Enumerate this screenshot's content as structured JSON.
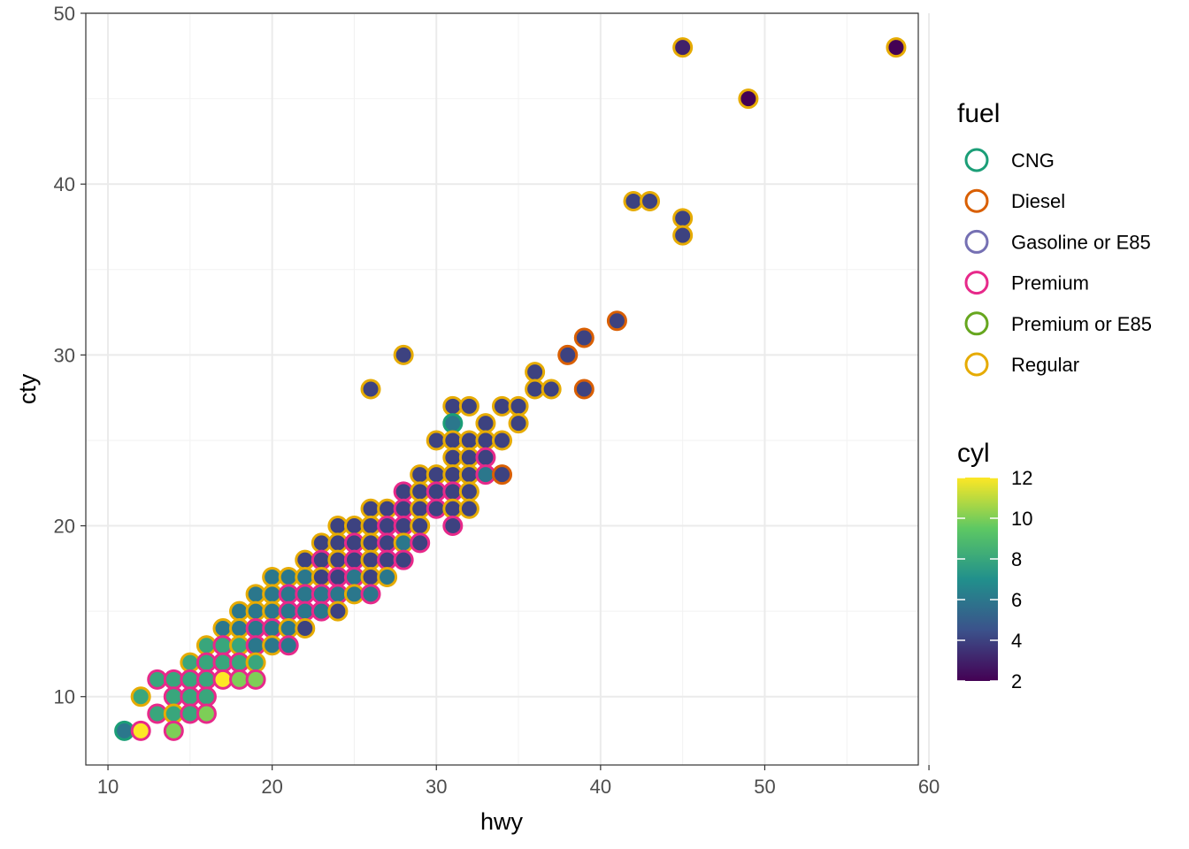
{
  "chart_data": {
    "type": "scatter",
    "title": "",
    "xlabel": "hwy",
    "ylabel": "cty",
    "xlim": [
      8.65,
      59.35
    ],
    "ylim": [
      6.0,
      50.0
    ],
    "x_ticks": [
      10,
      20,
      30,
      40,
      50,
      60
    ],
    "y_ticks": [
      10,
      20,
      30,
      40,
      50
    ],
    "grid": true,
    "fill_encoding": {
      "title": "cyl",
      "type": "continuous",
      "range": [
        2,
        12
      ],
      "ticks": [
        2,
        4,
        6,
        8,
        10,
        12
      ],
      "palette": [
        "#440154",
        "#3B528B",
        "#21908C",
        "#5DC863",
        "#FDE725"
      ]
    },
    "stroke_encoding": {
      "title": "fuel",
      "categories": [
        "CNG",
        "Diesel",
        "Gasoline or E85",
        "Premium",
        "Premium or E85",
        "Regular"
      ],
      "colors": [
        "#1B9E77",
        "#D95F02",
        "#7570B3",
        "#E7298A",
        "#66A61E",
        "#E6AB02"
      ]
    },
    "points": [
      {
        "hwy": 58,
        "cty": 48,
        "cyl": 2,
        "fuel": "Regular"
      },
      {
        "hwy": 45,
        "cty": 48,
        "cyl": 3,
        "fuel": "Regular"
      },
      {
        "hwy": 49,
        "cty": 45,
        "cyl": 2,
        "fuel": "Regular"
      },
      {
        "hwy": 42,
        "cty": 39,
        "cyl": 4,
        "fuel": "Regular"
      },
      {
        "hwy": 43,
        "cty": 39,
        "cyl": 4,
        "fuel": "Regular"
      },
      {
        "hwy": 45,
        "cty": 38,
        "cyl": 4,
        "fuel": "Regular"
      },
      {
        "hwy": 45,
        "cty": 37,
        "cyl": 4,
        "fuel": "Regular"
      },
      {
        "hwy": 41,
        "cty": 32,
        "cyl": 4,
        "fuel": "Diesel"
      },
      {
        "hwy": 39,
        "cty": 31,
        "cyl": 4,
        "fuel": "Diesel"
      },
      {
        "hwy": 38,
        "cty": 30,
        "cyl": 4,
        "fuel": "Diesel"
      },
      {
        "hwy": 28,
        "cty": 30,
        "cyl": 4,
        "fuel": "Regular"
      },
      {
        "hwy": 36,
        "cty": 29,
        "cyl": 4,
        "fuel": "Regular"
      },
      {
        "hwy": 26,
        "cty": 28,
        "cyl": 4,
        "fuel": "Regular"
      },
      {
        "hwy": 36,
        "cty": 28,
        "cyl": 4,
        "fuel": "Regular"
      },
      {
        "hwy": 37,
        "cty": 28,
        "cyl": 4,
        "fuel": "Regular"
      },
      {
        "hwy": 39,
        "cty": 28,
        "cyl": 4,
        "fuel": "Diesel"
      },
      {
        "hwy": 31,
        "cty": 27,
        "cyl": 4,
        "fuel": "Regular"
      },
      {
        "hwy": 32,
        "cty": 27,
        "cyl": 4,
        "fuel": "Regular"
      },
      {
        "hwy": 34,
        "cty": 27,
        "cyl": 4,
        "fuel": "Regular"
      },
      {
        "hwy": 35,
        "cty": 27,
        "cyl": 4,
        "fuel": "Regular"
      },
      {
        "hwy": 31,
        "cty": 26,
        "cyl": 6,
        "fuel": "CNG"
      },
      {
        "hwy": 33,
        "cty": 26,
        "cyl": 4,
        "fuel": "Regular"
      },
      {
        "hwy": 35,
        "cty": 26,
        "cyl": 4,
        "fuel": "Regular"
      },
      {
        "hwy": 30,
        "cty": 25,
        "cyl": 4,
        "fuel": "Regular"
      },
      {
        "hwy": 31,
        "cty": 25,
        "cyl": 4,
        "fuel": "Regular"
      },
      {
        "hwy": 32,
        "cty": 25,
        "cyl": 4,
        "fuel": "Regular"
      },
      {
        "hwy": 33,
        "cty": 25,
        "cyl": 4,
        "fuel": "Regular"
      },
      {
        "hwy": 34,
        "cty": 25,
        "cyl": 4,
        "fuel": "Regular"
      },
      {
        "hwy": 31,
        "cty": 24,
        "cyl": 4,
        "fuel": "Regular"
      },
      {
        "hwy": 32,
        "cty": 24,
        "cyl": 4,
        "fuel": "Regular"
      },
      {
        "hwy": 33,
        "cty": 24,
        "cyl": 4,
        "fuel": "Premium"
      },
      {
        "hwy": 29,
        "cty": 23,
        "cyl": 4,
        "fuel": "Regular"
      },
      {
        "hwy": 30,
        "cty": 23,
        "cyl": 4,
        "fuel": "Regular"
      },
      {
        "hwy": 31,
        "cty": 23,
        "cyl": 4,
        "fuel": "Regular"
      },
      {
        "hwy": 32,
        "cty": 23,
        "cyl": 4,
        "fuel": "Regular"
      },
      {
        "hwy": 33,
        "cty": 23,
        "cyl": 6,
        "fuel": "Premium"
      },
      {
        "hwy": 34,
        "cty": 23,
        "cyl": 4,
        "fuel": "Diesel"
      },
      {
        "hwy": 28,
        "cty": 22,
        "cyl": 4,
        "fuel": "Premium"
      },
      {
        "hwy": 29,
        "cty": 22,
        "cyl": 4,
        "fuel": "Regular"
      },
      {
        "hwy": 30,
        "cty": 22,
        "cyl": 4,
        "fuel": "Premium"
      },
      {
        "hwy": 31,
        "cty": 22,
        "cyl": 4,
        "fuel": "Premium"
      },
      {
        "hwy": 32,
        "cty": 22,
        "cyl": 4,
        "fuel": "Regular"
      },
      {
        "hwy": 26,
        "cty": 21,
        "cyl": 4,
        "fuel": "Regular"
      },
      {
        "hwy": 27,
        "cty": 21,
        "cyl": 4,
        "fuel": "Regular"
      },
      {
        "hwy": 28,
        "cty": 21,
        "cyl": 4,
        "fuel": "Premium"
      },
      {
        "hwy": 29,
        "cty": 21,
        "cyl": 4,
        "fuel": "Regular"
      },
      {
        "hwy": 30,
        "cty": 21,
        "cyl": 4,
        "fuel": "Premium"
      },
      {
        "hwy": 31,
        "cty": 21,
        "cyl": 4,
        "fuel": "Regular"
      },
      {
        "hwy": 32,
        "cty": 21,
        "cyl": 4,
        "fuel": "Regular"
      },
      {
        "hwy": 24,
        "cty": 20,
        "cyl": 4,
        "fuel": "Regular"
      },
      {
        "hwy": 25,
        "cty": 20,
        "cyl": 4,
        "fuel": "Regular"
      },
      {
        "hwy": 26,
        "cty": 20,
        "cyl": 4,
        "fuel": "Regular"
      },
      {
        "hwy": 27,
        "cty": 20,
        "cyl": 4,
        "fuel": "Premium"
      },
      {
        "hwy": 28,
        "cty": 20,
        "cyl": 4,
        "fuel": "Premium"
      },
      {
        "hwy": 29,
        "cty": 20,
        "cyl": 4,
        "fuel": "Regular"
      },
      {
        "hwy": 31,
        "cty": 20,
        "cyl": 4,
        "fuel": "Premium"
      },
      {
        "hwy": 23,
        "cty": 19,
        "cyl": 4,
        "fuel": "Regular"
      },
      {
        "hwy": 24,
        "cty": 19,
        "cyl": 4,
        "fuel": "Regular"
      },
      {
        "hwy": 25,
        "cty": 19,
        "cyl": 4,
        "fuel": "Premium"
      },
      {
        "hwy": 26,
        "cty": 19,
        "cyl": 4,
        "fuel": "Regular"
      },
      {
        "hwy": 27,
        "cty": 19,
        "cyl": 4,
        "fuel": "Premium"
      },
      {
        "hwy": 28,
        "cty": 19,
        "cyl": 6,
        "fuel": "Regular"
      },
      {
        "hwy": 29,
        "cty": 19,
        "cyl": 4,
        "fuel": "Premium"
      },
      {
        "hwy": 22,
        "cty": 18,
        "cyl": 4,
        "fuel": "Regular"
      },
      {
        "hwy": 23,
        "cty": 18,
        "cyl": 4,
        "fuel": "Premium"
      },
      {
        "hwy": 24,
        "cty": 18,
        "cyl": 4,
        "fuel": "Regular"
      },
      {
        "hwy": 25,
        "cty": 18,
        "cyl": 4,
        "fuel": "Premium"
      },
      {
        "hwy": 26,
        "cty": 18,
        "cyl": 4,
        "fuel": "Regular"
      },
      {
        "hwy": 27,
        "cty": 18,
        "cyl": 4,
        "fuel": "Premium"
      },
      {
        "hwy": 28,
        "cty": 18,
        "cyl": 4,
        "fuel": "Premium"
      },
      {
        "hwy": 20,
        "cty": 17,
        "cyl": 6,
        "fuel": "Regular"
      },
      {
        "hwy": 21,
        "cty": 17,
        "cyl": 6,
        "fuel": "Regular"
      },
      {
        "hwy": 22,
        "cty": 17,
        "cyl": 6,
        "fuel": "Regular"
      },
      {
        "hwy": 23,
        "cty": 17,
        "cyl": 4,
        "fuel": "Regular"
      },
      {
        "hwy": 24,
        "cty": 17,
        "cyl": 4,
        "fuel": "Premium"
      },
      {
        "hwy": 25,
        "cty": 17,
        "cyl": 6,
        "fuel": "Premium"
      },
      {
        "hwy": 26,
        "cty": 17,
        "cyl": 4,
        "fuel": "Regular"
      },
      {
        "hwy": 27,
        "cty": 17,
        "cyl": 6,
        "fuel": "Regular"
      },
      {
        "hwy": 19,
        "cty": 16,
        "cyl": 6,
        "fuel": "Regular"
      },
      {
        "hwy": 20,
        "cty": 16,
        "cyl": 6,
        "fuel": "Regular"
      },
      {
        "hwy": 21,
        "cty": 16,
        "cyl": 6,
        "fuel": "Premium"
      },
      {
        "hwy": 22,
        "cty": 16,
        "cyl": 6,
        "fuel": "Premium"
      },
      {
        "hwy": 23,
        "cty": 16,
        "cyl": 6,
        "fuel": "Premium"
      },
      {
        "hwy": 24,
        "cty": 16,
        "cyl": 6,
        "fuel": "Premium"
      },
      {
        "hwy": 25,
        "cty": 16,
        "cyl": 6,
        "fuel": "Regular"
      },
      {
        "hwy": 26,
        "cty": 16,
        "cyl": 6,
        "fuel": "Premium"
      },
      {
        "hwy": 18,
        "cty": 15,
        "cyl": 6,
        "fuel": "Regular"
      },
      {
        "hwy": 19,
        "cty": 15,
        "cyl": 6,
        "fuel": "Regular"
      },
      {
        "hwy": 20,
        "cty": 15,
        "cyl": 6,
        "fuel": "Regular"
      },
      {
        "hwy": 21,
        "cty": 15,
        "cyl": 6,
        "fuel": "Premium"
      },
      {
        "hwy": 22,
        "cty": 15,
        "cyl": 6,
        "fuel": "Premium"
      },
      {
        "hwy": 23,
        "cty": 15,
        "cyl": 6,
        "fuel": "Premium"
      },
      {
        "hwy": 24,
        "cty": 15,
        "cyl": 4,
        "fuel": "Regular"
      },
      {
        "hwy": 17,
        "cty": 14,
        "cyl": 6,
        "fuel": "Regular"
      },
      {
        "hwy": 18,
        "cty": 14,
        "cyl": 6,
        "fuel": "Regular"
      },
      {
        "hwy": 19,
        "cty": 14,
        "cyl": 6,
        "fuel": "Premium"
      },
      {
        "hwy": 20,
        "cty": 14,
        "cyl": 6,
        "fuel": "Premium"
      },
      {
        "hwy": 21,
        "cty": 14,
        "cyl": 6,
        "fuel": "Regular"
      },
      {
        "hwy": 22,
        "cty": 14,
        "cyl": 4,
        "fuel": "Regular"
      },
      {
        "hwy": 16,
        "cty": 13,
        "cyl": 8,
        "fuel": "Regular"
      },
      {
        "hwy": 17,
        "cty": 13,
        "cyl": 8,
        "fuel": "Premium"
      },
      {
        "hwy": 18,
        "cty": 13,
        "cyl": 8,
        "fuel": "Regular"
      },
      {
        "hwy": 19,
        "cty": 13,
        "cyl": 6,
        "fuel": "Premium"
      },
      {
        "hwy": 20,
        "cty": 13,
        "cyl": 6,
        "fuel": "Regular"
      },
      {
        "hwy": 21,
        "cty": 13,
        "cyl": 6,
        "fuel": "Premium"
      },
      {
        "hwy": 15,
        "cty": 12,
        "cyl": 8,
        "fuel": "Regular"
      },
      {
        "hwy": 16,
        "cty": 12,
        "cyl": 8,
        "fuel": "Premium"
      },
      {
        "hwy": 17,
        "cty": 12,
        "cyl": 8,
        "fuel": "Premium"
      },
      {
        "hwy": 18,
        "cty": 12,
        "cyl": 8,
        "fuel": "Premium"
      },
      {
        "hwy": 19,
        "cty": 12,
        "cyl": 8,
        "fuel": "Regular"
      },
      {
        "hwy": 13,
        "cty": 11,
        "cyl": 8,
        "fuel": "Premium"
      },
      {
        "hwy": 14,
        "cty": 11,
        "cyl": 8,
        "fuel": "Premium"
      },
      {
        "hwy": 15,
        "cty": 11,
        "cyl": 8,
        "fuel": "Premium"
      },
      {
        "hwy": 16,
        "cty": 11,
        "cyl": 8,
        "fuel": "Premium"
      },
      {
        "hwy": 17,
        "cty": 11,
        "cyl": 12,
        "fuel": "Premium"
      },
      {
        "hwy": 18,
        "cty": 11,
        "cyl": 10,
        "fuel": "Premium"
      },
      {
        "hwy": 19,
        "cty": 11,
        "cyl": 10,
        "fuel": "Premium"
      },
      {
        "hwy": 12,
        "cty": 10,
        "cyl": 8,
        "fuel": "Regular"
      },
      {
        "hwy": 14,
        "cty": 10,
        "cyl": 8,
        "fuel": "Premium"
      },
      {
        "hwy": 15,
        "cty": 10,
        "cyl": 8,
        "fuel": "Premium"
      },
      {
        "hwy": 16,
        "cty": 10,
        "cyl": 8,
        "fuel": "Premium"
      },
      {
        "hwy": 13,
        "cty": 9,
        "cyl": 8,
        "fuel": "Premium"
      },
      {
        "hwy": 14,
        "cty": 9,
        "cyl": 8,
        "fuel": "Regular"
      },
      {
        "hwy": 15,
        "cty": 9,
        "cyl": 8,
        "fuel": "Premium"
      },
      {
        "hwy": 16,
        "cty": 9,
        "cyl": 10,
        "fuel": "Premium"
      },
      {
        "hwy": 11,
        "cty": 8,
        "cyl": 6,
        "fuel": "CNG"
      },
      {
        "hwy": 12,
        "cty": 8,
        "cyl": 12,
        "fuel": "Premium"
      },
      {
        "hwy": 14,
        "cty": 8,
        "cyl": 10,
        "fuel": "Premium"
      }
    ]
  }
}
